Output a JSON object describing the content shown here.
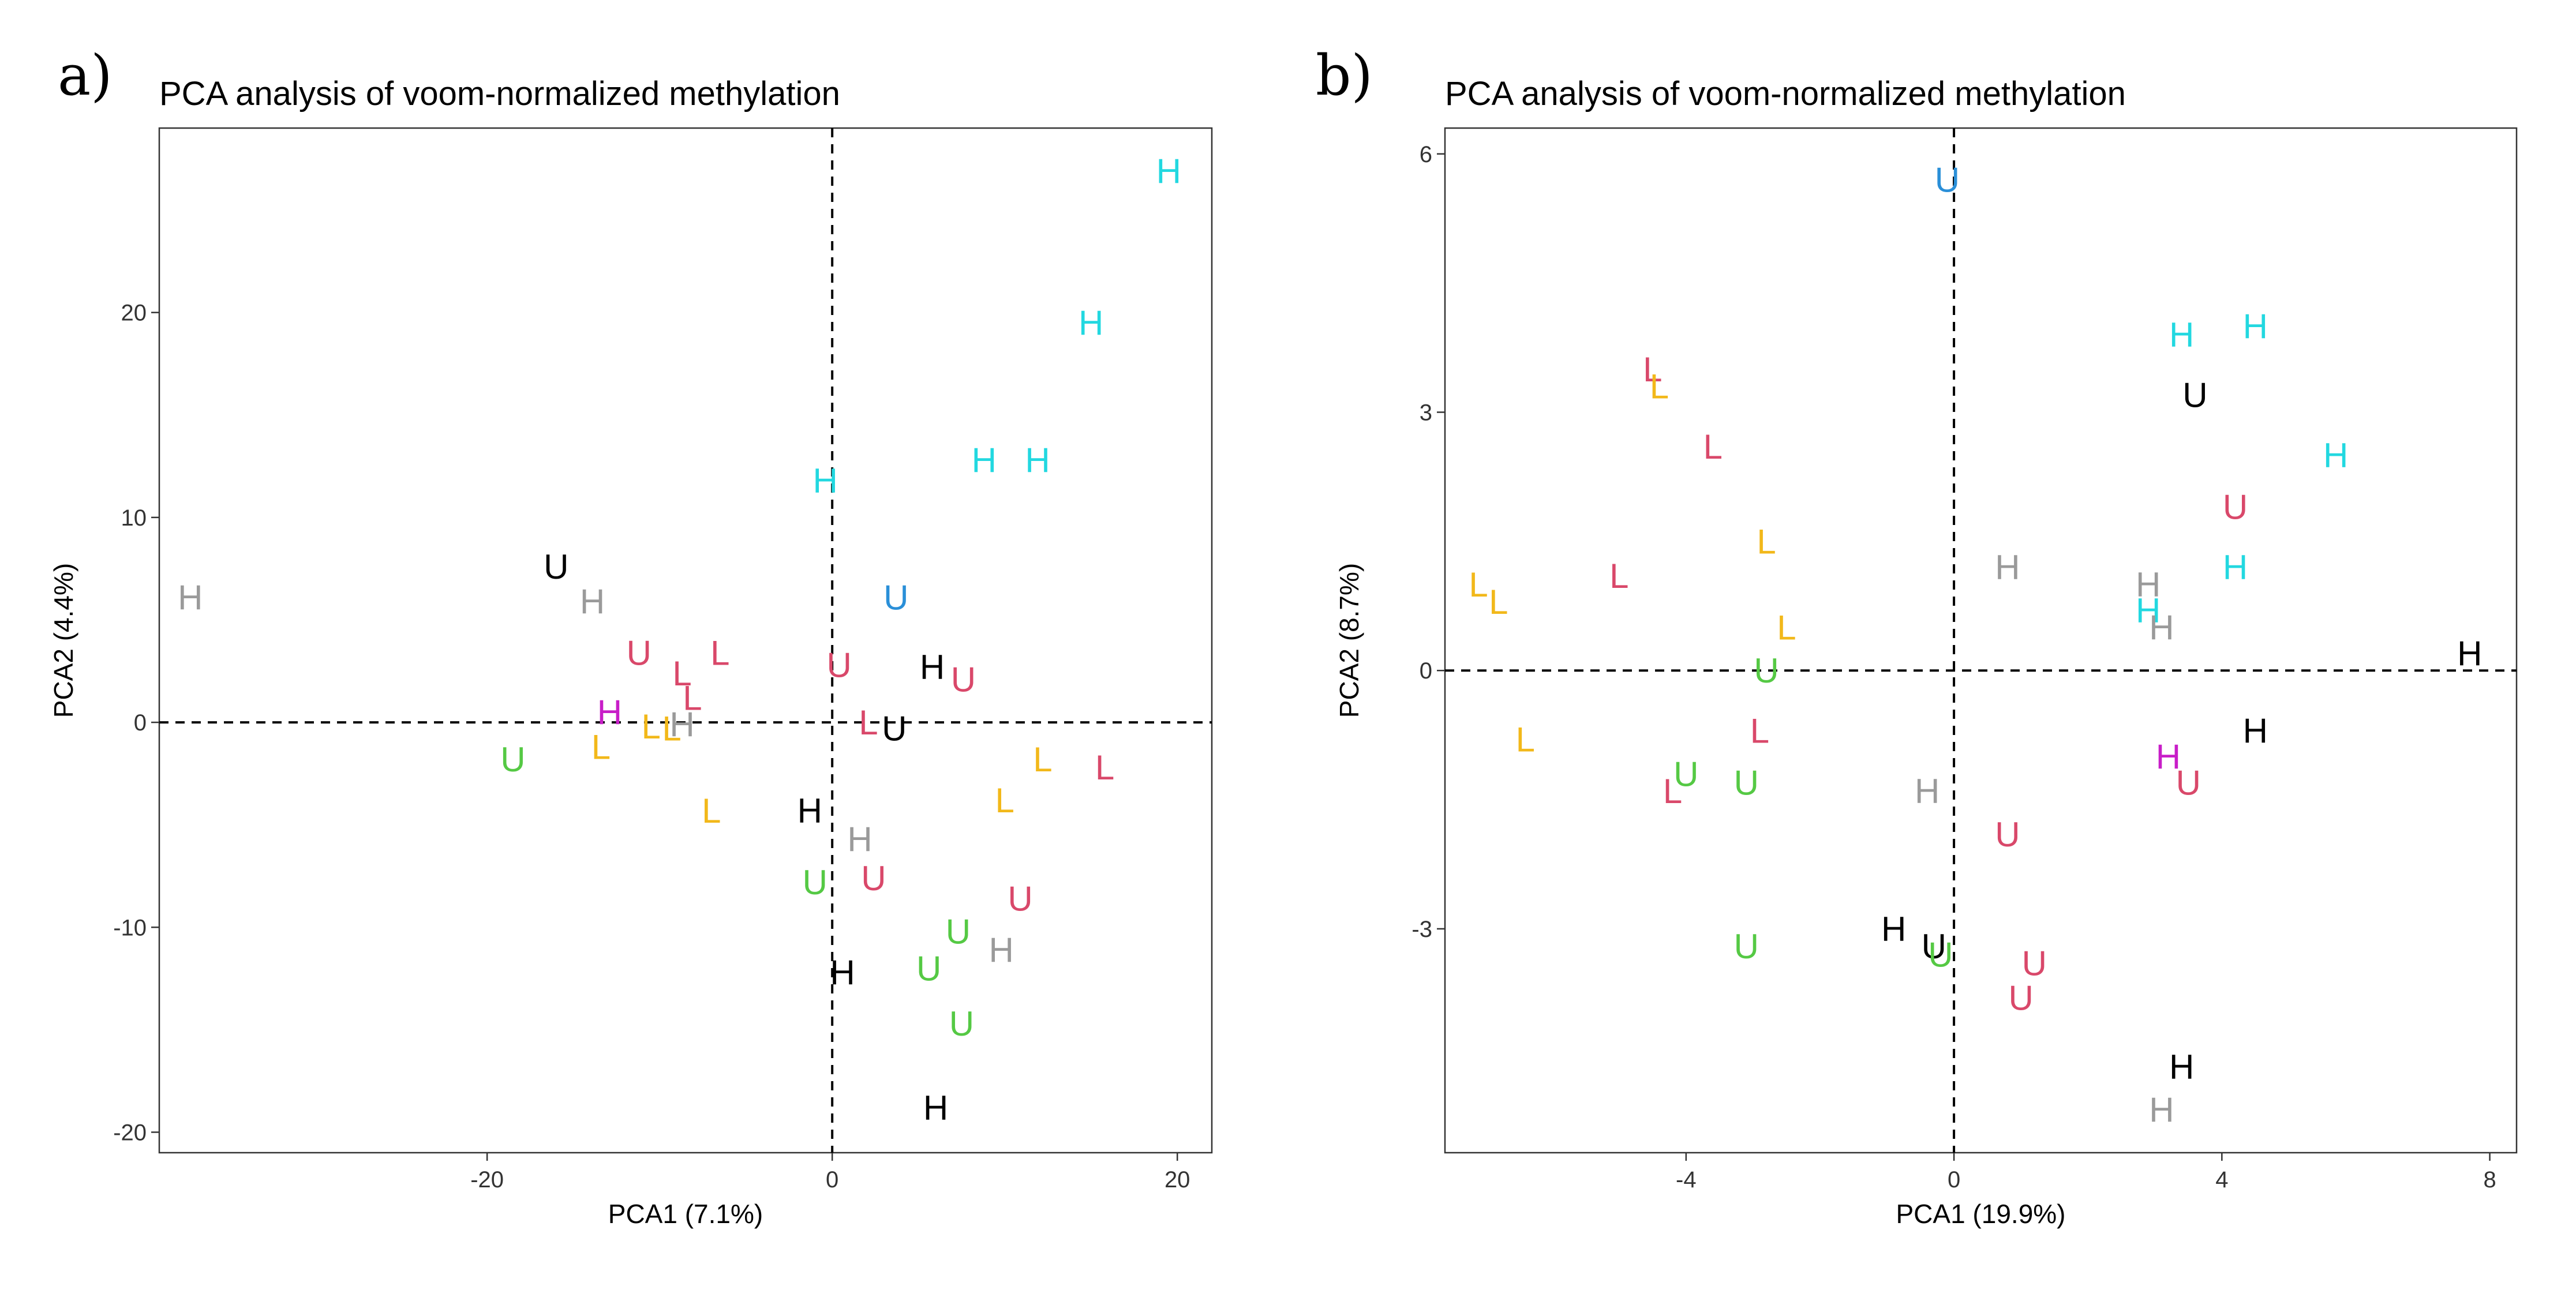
{
  "colors": {
    "black": "#000000",
    "gray": "#9a9a9a",
    "cyan": "#22d8e0",
    "blue": "#2a8fd8",
    "red": "#d9486a",
    "green": "#55c944",
    "yellow": "#f2b81a",
    "magenta": "#c81ec8"
  },
  "chart_data": [
    {
      "panel": "a)",
      "type": "scatter",
      "title": "PCA analysis of voom-normalized methylation",
      "xlabel": "PCA1 (7.1%)",
      "ylabel": "PCA2 (4.4%)",
      "xlim": [
        -39,
        22
      ],
      "ylim": [
        -21,
        29
      ],
      "xticks": [
        -20,
        0,
        20
      ],
      "yticks": [
        -20,
        -10,
        0,
        10,
        20
      ],
      "reference_lines": {
        "x": 0,
        "y": 0
      },
      "points": [
        {
          "label": "H",
          "color": "cyan",
          "x": 19.5,
          "y": 26.9
        },
        {
          "label": "H",
          "color": "cyan",
          "x": 15.0,
          "y": 19.5
        },
        {
          "label": "H",
          "color": "cyan",
          "x": 8.8,
          "y": 12.8
        },
        {
          "label": "H",
          "color": "cyan",
          "x": 11.9,
          "y": 12.8
        },
        {
          "label": "H",
          "color": "cyan",
          "x": -0.4,
          "y": 11.8
        },
        {
          "label": "H",
          "color": "gray",
          "x": -37.2,
          "y": 6.1
        },
        {
          "label": "U",
          "color": "black",
          "x": -16.0,
          "y": 7.6
        },
        {
          "label": "H",
          "color": "gray",
          "x": -13.9,
          "y": 5.9
        },
        {
          "label": "U",
          "color": "blue",
          "x": 3.7,
          "y": 6.1
        },
        {
          "label": "U",
          "color": "red",
          "x": -11.2,
          "y": 3.4
        },
        {
          "label": "L",
          "color": "red",
          "x": -6.5,
          "y": 3.4
        },
        {
          "label": "L",
          "color": "red",
          "x": -8.7,
          "y": 2.4
        },
        {
          "label": "L",
          "color": "red",
          "x": -8.1,
          "y": 1.2
        },
        {
          "label": "U",
          "color": "red",
          "x": 0.4,
          "y": 2.8
        },
        {
          "label": "H",
          "color": "black",
          "x": 5.8,
          "y": 2.7
        },
        {
          "label": "U",
          "color": "red",
          "x": 7.6,
          "y": 2.1
        },
        {
          "label": "H",
          "color": "magenta",
          "x": -12.9,
          "y": 0.5
        },
        {
          "label": "L",
          "color": "yellow",
          "x": -10.5,
          "y": -0.2
        },
        {
          "label": "L",
          "color": "yellow",
          "x": -9.3,
          "y": -0.3
        },
        {
          "label": "H",
          "color": "gray",
          "x": -8.7,
          "y": -0.1
        },
        {
          "label": "L",
          "color": "yellow",
          "x": -13.4,
          "y": -1.2
        },
        {
          "label": "L",
          "color": "red",
          "x": 2.1,
          "y": 0.0
        },
        {
          "label": "U",
          "color": "black",
          "x": 3.6,
          "y": -0.3
        },
        {
          "label": "U",
          "color": "green",
          "x": -18.5,
          "y": -1.8
        },
        {
          "label": "L",
          "color": "yellow",
          "x": 12.2,
          "y": -1.8
        },
        {
          "label": "L",
          "color": "red",
          "x": 15.8,
          "y": -2.2
        },
        {
          "label": "L",
          "color": "yellow",
          "x": -7.0,
          "y": -4.3
        },
        {
          "label": "H",
          "color": "black",
          "x": -1.3,
          "y": -4.3
        },
        {
          "label": "L",
          "color": "yellow",
          "x": 10.0,
          "y": -3.8
        },
        {
          "label": "H",
          "color": "gray",
          "x": 1.6,
          "y": -5.7
        },
        {
          "label": "U",
          "color": "green",
          "x": -1.0,
          "y": -7.8
        },
        {
          "label": "U",
          "color": "red",
          "x": 2.4,
          "y": -7.6
        },
        {
          "label": "U",
          "color": "red",
          "x": 10.9,
          "y": -8.6
        },
        {
          "label": "U",
          "color": "green",
          "x": 7.3,
          "y": -10.2
        },
        {
          "label": "H",
          "color": "gray",
          "x": 9.8,
          "y": -11.1
        },
        {
          "label": "U",
          "color": "green",
          "x": 5.6,
          "y": -12.0
        },
        {
          "label": "H",
          "color": "black",
          "x": 0.6,
          "y": -12.2
        },
        {
          "label": "U",
          "color": "green",
          "x": 7.5,
          "y": -14.7
        },
        {
          "label": "H",
          "color": "black",
          "x": 6.0,
          "y": -18.8
        }
      ]
    },
    {
      "panel": "b)",
      "type": "scatter",
      "title": "PCA analysis of voom-normalized methylation",
      "xlabel": "PCA1 (19.9%)",
      "ylabel": "PCA2 (8.7%)",
      "xlim": [
        -7.6,
        8.4
      ],
      "ylim": [
        -5.6,
        6.3
      ],
      "xticks": [
        -4,
        0,
        4,
        8
      ],
      "yticks": [
        -3,
        0,
        3,
        6
      ],
      "reference_lines": {
        "x": 0,
        "y": 0
      },
      "points": [
        {
          "label": "U",
          "color": "blue",
          "x": -0.1,
          "y": 5.7
        },
        {
          "label": "H",
          "color": "cyan",
          "x": 4.5,
          "y": 4.0
        },
        {
          "label": "H",
          "color": "cyan",
          "x": 3.4,
          "y": 3.9
        },
        {
          "label": "U",
          "color": "black",
          "x": 3.6,
          "y": 3.2
        },
        {
          "label": "H",
          "color": "cyan",
          "x": 5.7,
          "y": 2.5
        },
        {
          "label": "U",
          "color": "red",
          "x": 4.2,
          "y": 1.9
        },
        {
          "label": "H",
          "color": "cyan",
          "x": 4.2,
          "y": 1.2
        },
        {
          "label": "H",
          "color": "gray",
          "x": 0.8,
          "y": 1.2
        },
        {
          "label": "H",
          "color": "gray",
          "x": 2.9,
          "y": 1.0
        },
        {
          "label": "H",
          "color": "cyan",
          "x": 2.9,
          "y": 0.7
        },
        {
          "label": "H",
          "color": "gray",
          "x": 3.1,
          "y": 0.5
        },
        {
          "label": "H",
          "color": "black",
          "x": 7.7,
          "y": 0.2
        },
        {
          "label": "H",
          "color": "black",
          "x": 4.5,
          "y": -0.7
        },
        {
          "label": "H",
          "color": "magenta",
          "x": 3.2,
          "y": -1.0
        },
        {
          "label": "U",
          "color": "red",
          "x": 3.5,
          "y": -1.3
        },
        {
          "label": "H",
          "color": "gray",
          "x": -0.4,
          "y": -1.4
        },
        {
          "label": "U",
          "color": "red",
          "x": 0.8,
          "y": -1.9
        },
        {
          "label": "L",
          "color": "red",
          "x": -4.5,
          "y": 3.5
        },
        {
          "label": "L",
          "color": "yellow",
          "x": -4.4,
          "y": 3.3
        },
        {
          "label": "L",
          "color": "red",
          "x": -3.6,
          "y": 2.6
        },
        {
          "label": "L",
          "color": "yellow",
          "x": -2.8,
          "y": 1.5
        },
        {
          "label": "L",
          "color": "red",
          "x": -5.0,
          "y": 1.1
        },
        {
          "label": "L",
          "color": "yellow",
          "x": -7.1,
          "y": 1.0
        },
        {
          "label": "L",
          "color": "yellow",
          "x": -6.8,
          "y": 0.8
        },
        {
          "label": "L",
          "color": "yellow",
          "x": -2.5,
          "y": 0.5
        },
        {
          "label": "U",
          "color": "green",
          "x": -2.8,
          "y": 0.0
        },
        {
          "label": "L",
          "color": "red",
          "x": -2.9,
          "y": -0.7
        },
        {
          "label": "L",
          "color": "yellow",
          "x": -6.4,
          "y": -0.8
        },
        {
          "label": "U",
          "color": "green",
          "x": -4.0,
          "y": -1.2
        },
        {
          "label": "L",
          "color": "red",
          "x": -4.2,
          "y": -1.4
        },
        {
          "label": "U",
          "color": "green",
          "x": -3.1,
          "y": -1.3
        },
        {
          "label": "U",
          "color": "green",
          "x": -3.1,
          "y": -3.2
        },
        {
          "label": "H",
          "color": "black",
          "x": -0.9,
          "y": -3.0
        },
        {
          "label": "U",
          "color": "black",
          "x": -0.3,
          "y": -3.2
        },
        {
          "label": "U",
          "color": "green",
          "x": -0.2,
          "y": -3.3
        },
        {
          "label": "U",
          "color": "red",
          "x": 1.2,
          "y": -3.4
        },
        {
          "label": "U",
          "color": "red",
          "x": 1.0,
          "y": -3.8
        },
        {
          "label": "H",
          "color": "black",
          "x": 3.4,
          "y": -4.6
        },
        {
          "label": "H",
          "color": "gray",
          "x": 3.1,
          "y": -5.1
        }
      ]
    }
  ]
}
